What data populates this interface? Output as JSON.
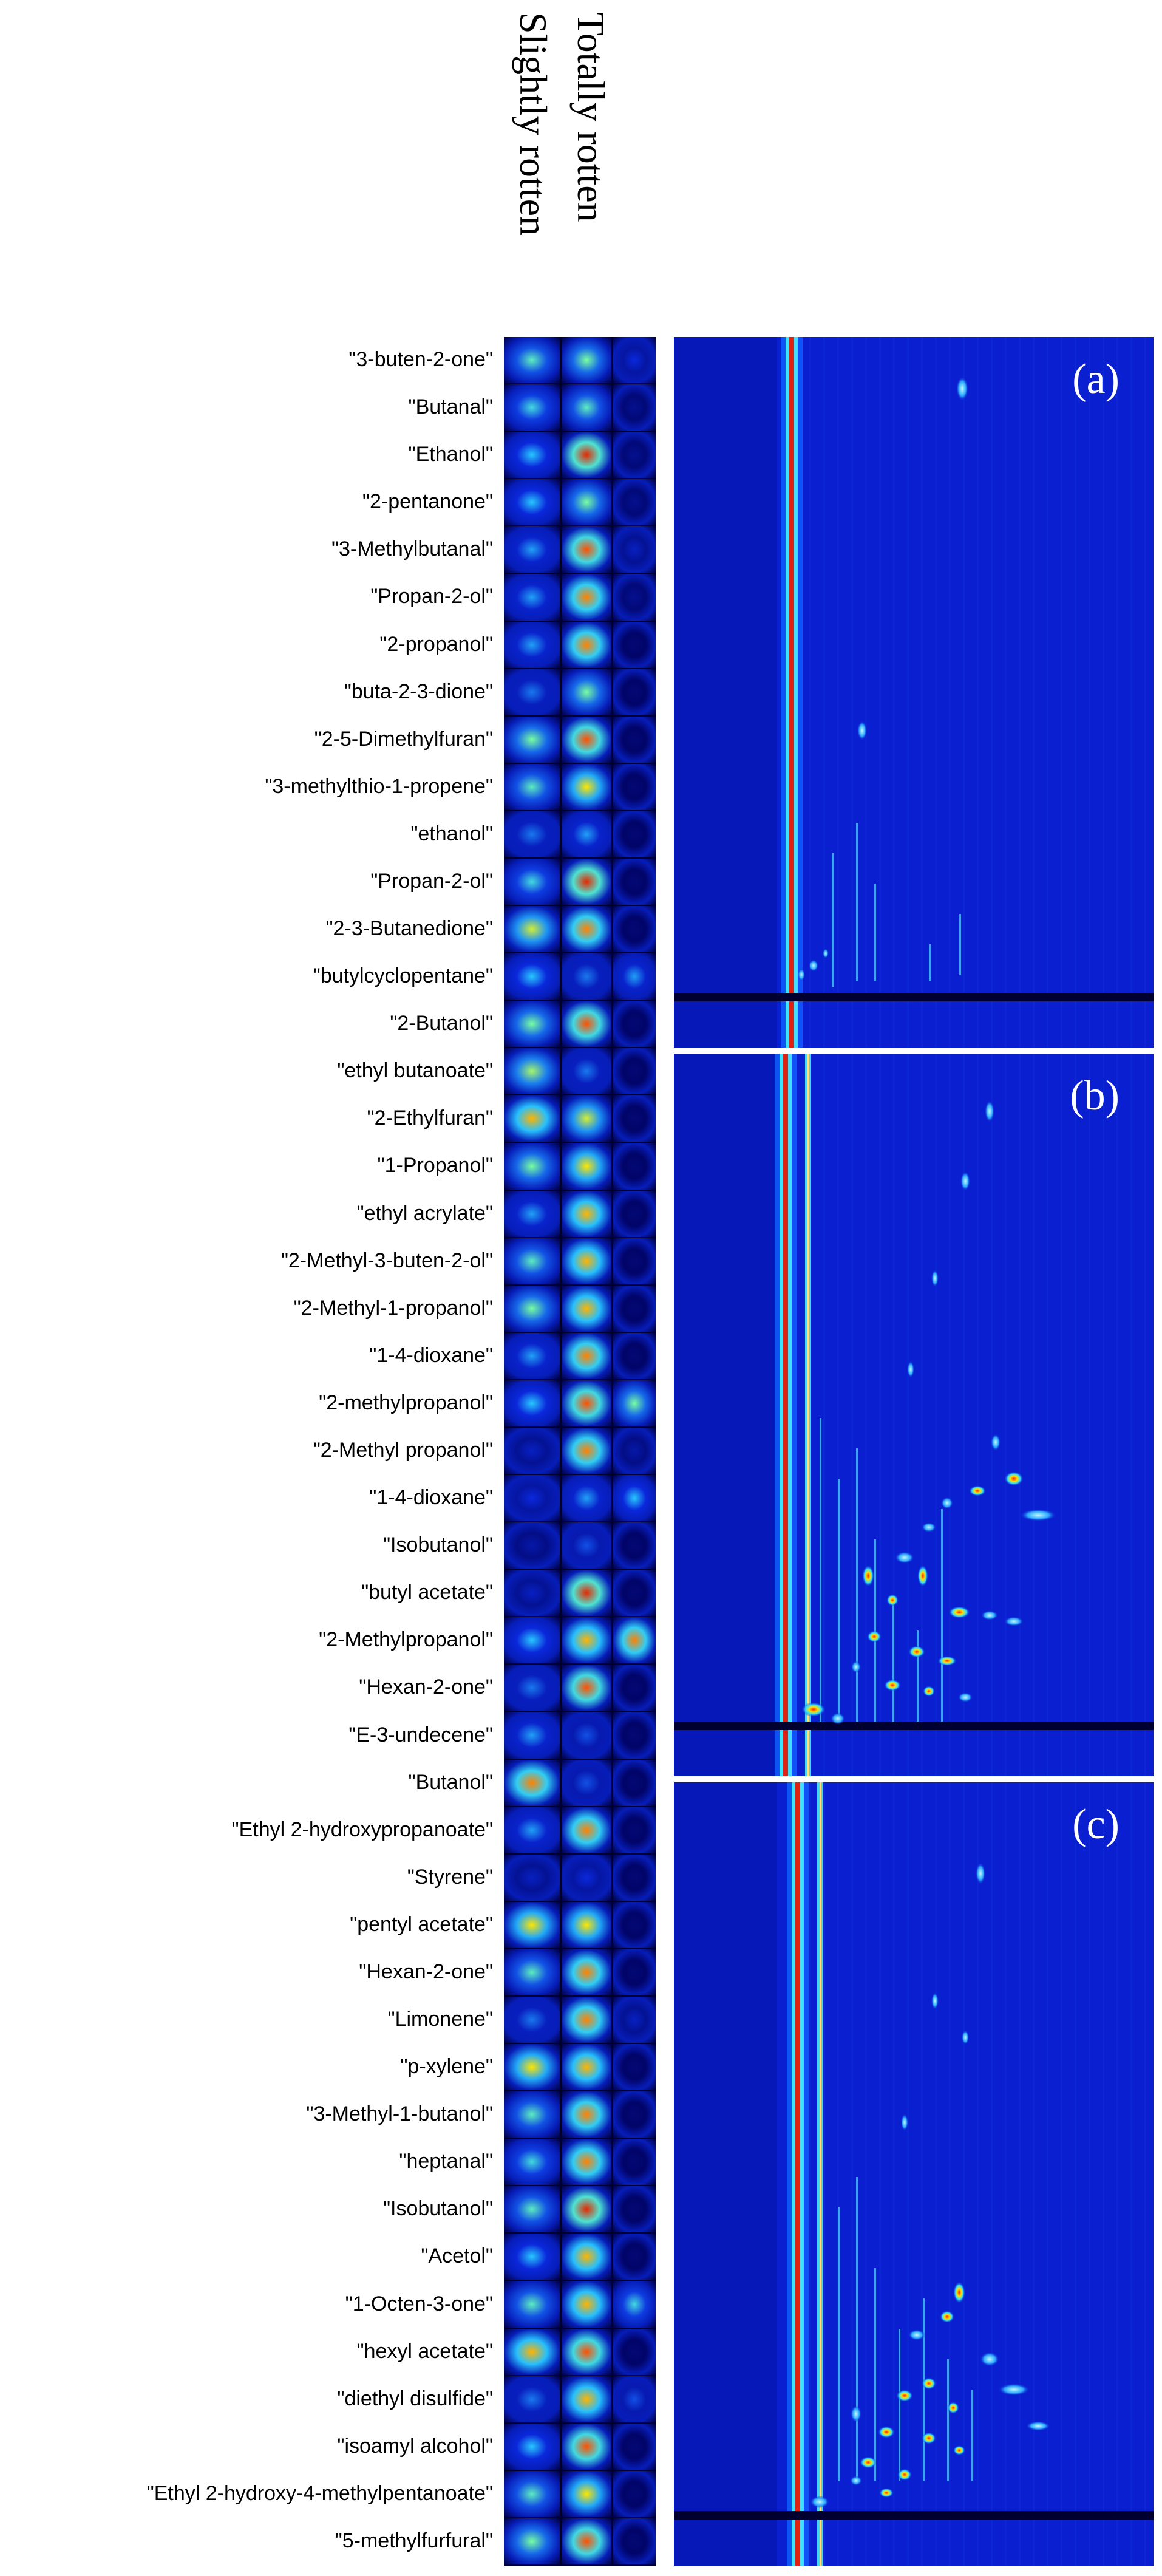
{
  "column_headers": [
    "Slightly rotten",
    "Totally rotten"
  ],
  "compounds": [
    "\"3-buten-2-one\"",
    "\"Butanal\"",
    "\"Ethanol\"",
    "\"2-pentanone\"",
    "\"3-Methylbutanal\"",
    "\"Propan-2-ol\"",
    "\"2-propanol\"",
    "\"buta-2-3-dione\"",
    "\"2-5-Dimethylfuran\"",
    "\"3-methylthio-1-propene\"",
    "\"ethanol\"",
    "\"Propan-2-ol\"",
    "\"2-3-Butanedione\"",
    "\"butylcyclopentane\"",
    "\"2-Butanol\"",
    "\"ethyl butanoate\"",
    "\"2-Ethylfuran\"",
    "\"1-Propanol\"",
    "\"ethyl acrylate\"",
    "\"2-Methyl-3-buten-2-ol\"",
    "\"2-Methyl-1-propanol\"",
    "\"1-4-dioxane\"",
    "\"2-methylpropanol\"",
    "\"2-Methyl propanol\"",
    "\"1-4-dioxane\"",
    "\"Isobutanol\"",
    "\"butyl acetate\"",
    "\"2-Methylpropanol\"",
    "\"Hexan-2-one\"",
    "\"E-3-undecene\"",
    "\"Butanol\"",
    "\"Ethyl 2-hydroxypropanoate\"",
    "\"Styrene\"",
    "\"pentyl acetate\"",
    "\"Hexan-2-one\"",
    "\"Limonene\"",
    "\"p-xylene\"",
    "\"3-Methyl-1-butanol\"",
    "\"heptanal\"",
    "\"Isobutanol\"",
    "\"Acetol\"",
    "\"1-Octen-3-one\"",
    "\"hexyl acetate\"",
    "\"diethyl disulfide\"",
    "\"isoamyl alcohol\"",
    "\"Ethyl 2-hydroxy-4-methylpentanoate\"",
    "\"5-methylfurfural\""
  ],
  "heatmap_intensity": [
    [
      0.55,
      0.6,
      0.25
    ],
    [
      0.5,
      0.55,
      0.1
    ],
    [
      0.45,
      0.95,
      0.1
    ],
    [
      0.45,
      0.6,
      0.1
    ],
    [
      0.4,
      0.9,
      0.2
    ],
    [
      0.4,
      0.85,
      0.1
    ],
    [
      0.4,
      0.85,
      0.05
    ],
    [
      0.35,
      0.6,
      0.05
    ],
    [
      0.6,
      0.9,
      0.05
    ],
    [
      0.55,
      0.75,
      0.05
    ],
    [
      0.35,
      0.4,
      0.05
    ],
    [
      0.5,
      0.95,
      0.05
    ],
    [
      0.7,
      0.85,
      0.05
    ],
    [
      0.45,
      0.35,
      0.4
    ],
    [
      0.6,
      0.9,
      0.05
    ],
    [
      0.65,
      0.35,
      0.05
    ],
    [
      0.8,
      0.7,
      0.05
    ],
    [
      0.6,
      0.75,
      0.05
    ],
    [
      0.4,
      0.8,
      0.05
    ],
    [
      0.55,
      0.8,
      0.05
    ],
    [
      0.6,
      0.8,
      0.05
    ],
    [
      0.4,
      0.85,
      0.05
    ],
    [
      0.45,
      0.9,
      0.6
    ],
    [
      0.2,
      0.85,
      0.15
    ],
    [
      0.25,
      0.4,
      0.45
    ],
    [
      0.15,
      0.3,
      0.05
    ],
    [
      0.2,
      0.95,
      0.05
    ],
    [
      0.45,
      0.8,
      0.85
    ],
    [
      0.35,
      0.9,
      0.05
    ],
    [
      0.4,
      0.3,
      0.05
    ],
    [
      0.85,
      0.3,
      0.05
    ],
    [
      0.4,
      0.85,
      0.05
    ],
    [
      0.2,
      0.25,
      0.05
    ],
    [
      0.75,
      0.75,
      0.05
    ],
    [
      0.55,
      0.85,
      0.05
    ],
    [
      0.35,
      0.85,
      0.2
    ],
    [
      0.75,
      0.8,
      0.05
    ],
    [
      0.55,
      0.85,
      0.05
    ],
    [
      0.5,
      0.85,
      0.05
    ],
    [
      0.55,
      0.95,
      0.05
    ],
    [
      0.45,
      0.8,
      0.05
    ],
    [
      0.55,
      0.8,
      0.5
    ],
    [
      0.8,
      0.9,
      0.05
    ],
    [
      0.35,
      0.8,
      0.3
    ],
    [
      0.45,
      0.9,
      0.05
    ],
    [
      0.55,
      0.75,
      0.05
    ],
    [
      0.6,
      0.9,
      0.05
    ]
  ],
  "panels": [
    {
      "tag": "(a)"
    },
    {
      "tag": "(b)"
    },
    {
      "tag": "(c)"
    }
  ],
  "colors": {
    "background_blue": "#0a1fd0",
    "deep_blue": "#00006a",
    "hot_red": "#e02010",
    "warm_yellow": "#ffe000",
    "cyan": "#30e0ff"
  }
}
